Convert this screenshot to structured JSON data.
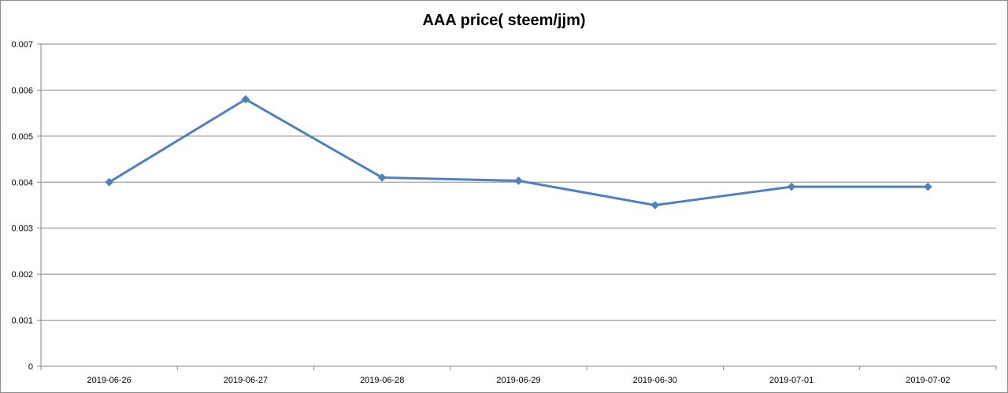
{
  "chart_data": {
    "type": "line",
    "title": "AAA price( steem/jjm)",
    "xlabel": "",
    "ylabel": "",
    "categories": [
      "2019-06-26",
      "2019-06-27",
      "2019-06-28",
      "2019-06-29",
      "2019-06-30",
      "2019-07-01",
      "2019-07-02"
    ],
    "series": [
      {
        "values": [
          0.004,
          0.0058,
          0.0041,
          0.00403,
          0.0035,
          0.0039,
          0.0039
        ]
      }
    ],
    "ylim": [
      0,
      0.007
    ],
    "yticks": [
      "0",
      "0.001",
      "0.002",
      "0.003",
      "0.004",
      "0.005",
      "0.006",
      "0.007"
    ],
    "grid": true,
    "legend": "none",
    "colors": {
      "line": "#4f81bd",
      "marker": "#4f81bd",
      "grid": "#868686",
      "axis": "#868686"
    }
  }
}
